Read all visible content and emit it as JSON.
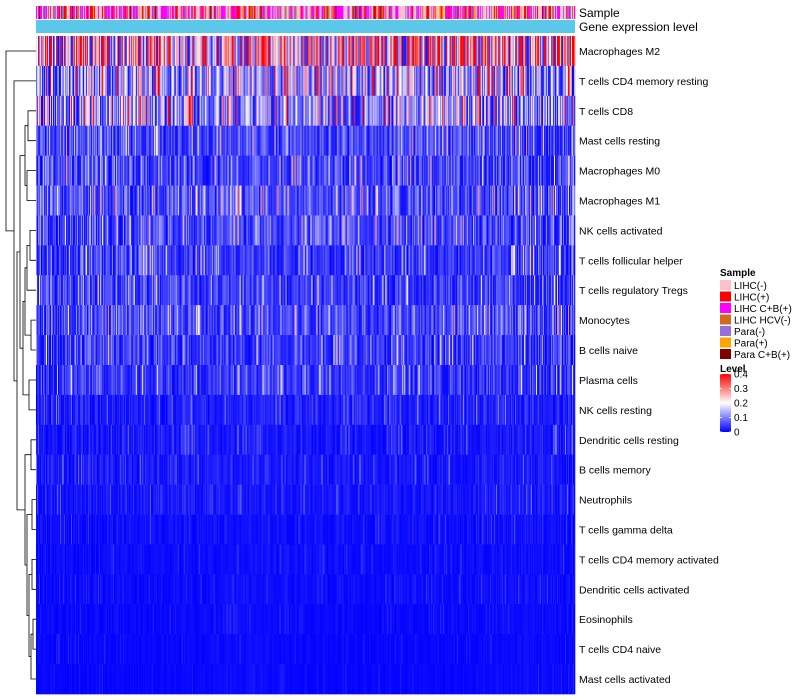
{
  "chart_data": {
    "type": "heatmap",
    "title": "",
    "annotation_labels": [
      "Sample",
      "Gene expression level"
    ],
    "rows": [
      {
        "name": "Macrophages M2",
        "mean": 0.26
      },
      {
        "name": "T cells CD4 memory resting",
        "mean": 0.14
      },
      {
        "name": "T cells CD8",
        "mean": 0.13
      },
      {
        "name": "Mast cells resting",
        "mean": 0.06
      },
      {
        "name": "Macrophages M0",
        "mean": 0.06
      },
      {
        "name": "Macrophages M1",
        "mean": 0.07
      },
      {
        "name": "NK cells activated",
        "mean": 0.06
      },
      {
        "name": "T cells follicular helper",
        "mean": 0.05
      },
      {
        "name": "T cells regulatory  Tregs",
        "mean": 0.05
      },
      {
        "name": "Monocytes",
        "mean": 0.06
      },
      {
        "name": "B cells naive",
        "mean": 0.05
      },
      {
        "name": "Plasma cells",
        "mean": 0.045
      },
      {
        "name": "NK cells resting",
        "mean": 0.025
      },
      {
        "name": "Dendritic cells resting",
        "mean": 0.02
      },
      {
        "name": "B cells memory",
        "mean": 0.02
      },
      {
        "name": "Neutrophils",
        "mean": 0.018
      },
      {
        "name": "T cells gamma delta",
        "mean": 0.012
      },
      {
        "name": "T cells CD4 memory activated",
        "mean": 0.01
      },
      {
        "name": "Dendritic cells activated",
        "mean": 0.01
      },
      {
        "name": "Eosinophils",
        "mean": 0.008
      },
      {
        "name": "T cells CD4 naive",
        "mean": 0.006
      },
      {
        "name": "Mast cells activated",
        "mean": 0.006
      }
    ],
    "n_samples": 540,
    "sample_legend": {
      "title": "Sample",
      "items": [
        {
          "label": "LIHC(-)",
          "color": "#ffc0cb"
        },
        {
          "label": "LIHC(+)",
          "color": "#ff0000"
        },
        {
          "label": "LIHC C+B(+)",
          "color": "#ff00ff"
        },
        {
          "label": "LIHC HCV(-)",
          "color": "#d2691e"
        },
        {
          "label": "Para(-)",
          "color": "#9370db"
        },
        {
          "label": "Para(+)",
          "color": "#ffa500"
        },
        {
          "label": "Para C+B(+)",
          "color": "#800000"
        }
      ]
    },
    "level_legend": {
      "title": "Level",
      "ticks": [
        "0.4",
        "0.3",
        "0.2",
        "0.1",
        "0"
      ],
      "range": [
        0,
        0.4
      ],
      "colors": [
        "#0000ff",
        "#ffffff",
        "#ff0000"
      ]
    },
    "expression_bar_color": "#5bc8ea"
  }
}
